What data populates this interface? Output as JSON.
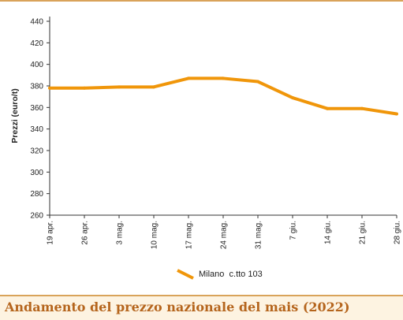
{
  "caption": "Andamento del prezzo nazionale del mais (2022)",
  "chart_data": {
    "type": "line",
    "categories": [
      "19 apr.",
      "26 apr.",
      "3 mag.",
      "10 mag.",
      "17 mag.",
      "24 mag.",
      "31 mag.",
      "7 giu.",
      "14 giu.",
      "21 giu.",
      "28 giu."
    ],
    "series": [
      {
        "name": "Milano  c.tto 103",
        "values": [
          378,
          378,
          379,
          379,
          387,
          387,
          384,
          369,
          359,
          359,
          354
        ]
      }
    ],
    "title": "",
    "xlabel": "",
    "ylabel": "Prezzi (euro/t)",
    "ylim": [
      260,
      440
    ],
    "yticks": [
      260,
      280,
      300,
      320,
      340,
      360,
      380,
      400,
      420,
      440
    ],
    "grid": false,
    "legend": "bottom-center",
    "color": "#f0960a"
  }
}
